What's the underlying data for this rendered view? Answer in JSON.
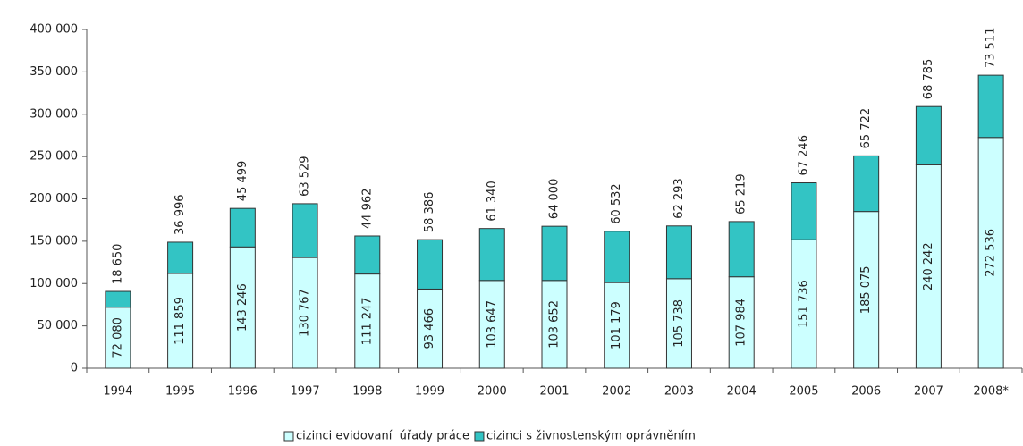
{
  "chart_data": {
    "type": "stacked_bar",
    "categories": [
      "1994",
      "1995",
      "1996",
      "1997",
      "1998",
      "1999",
      "2000",
      "2001",
      "2002",
      "2003",
      "2004",
      "2005",
      "2006",
      "2007",
      "2008*"
    ],
    "series": [
      {
        "name": "cizinci evidovaní  úřady práce",
        "color": "#ccffff",
        "values": [
          72080,
          111859,
          143246,
          130767,
          111247,
          93466,
          103647,
          103652,
          101179,
          105738,
          107984,
          151736,
          185075,
          240242,
          272536
        ],
        "value_labels": [
          "72 080",
          "111 859",
          "143 246",
          "130 767",
          "111 247",
          "93 466",
          "103 647",
          "103 652",
          "101 179",
          "105 738",
          "107 984",
          "151 736",
          "185 075",
          "240 242",
          "272 536"
        ]
      },
      {
        "name": "cizinci s živnostenským oprávněním",
        "color": "#33c4c4",
        "values": [
          18650,
          36996,
          45499,
          63529,
          44962,
          58386,
          61340,
          64000,
          60532,
          62293,
          65219,
          67246,
          65722,
          68785,
          73511
        ],
        "value_labels": [
          "18 650",
          "36 996",
          "45 499",
          "63 529",
          "44 962",
          "58 386",
          "61 340",
          "64 000",
          "60 532",
          "62 293",
          "65 219",
          "67 246",
          "65 722",
          "68 785",
          "73 511"
        ]
      }
    ],
    "ylim": [
      0,
      400000
    ],
    "yticks": [
      0,
      {
        "value": 50000,
        "label": "50 000"
      },
      {
        "value": 100000,
        "label": "100 000"
      },
      {
        "value": 150000,
        "label": "150 000"
      },
      {
        "value": 200000,
        "label": "200 000"
      },
      {
        "value": 250000,
        "label": "250 000"
      },
      {
        "value": 300000,
        "label": "300 000"
      },
      {
        "value": 350000,
        "label": "350 000"
      },
      {
        "value": 400000,
        "label": "400 000"
      }
    ],
    "grid": false,
    "legend": "bottom"
  }
}
